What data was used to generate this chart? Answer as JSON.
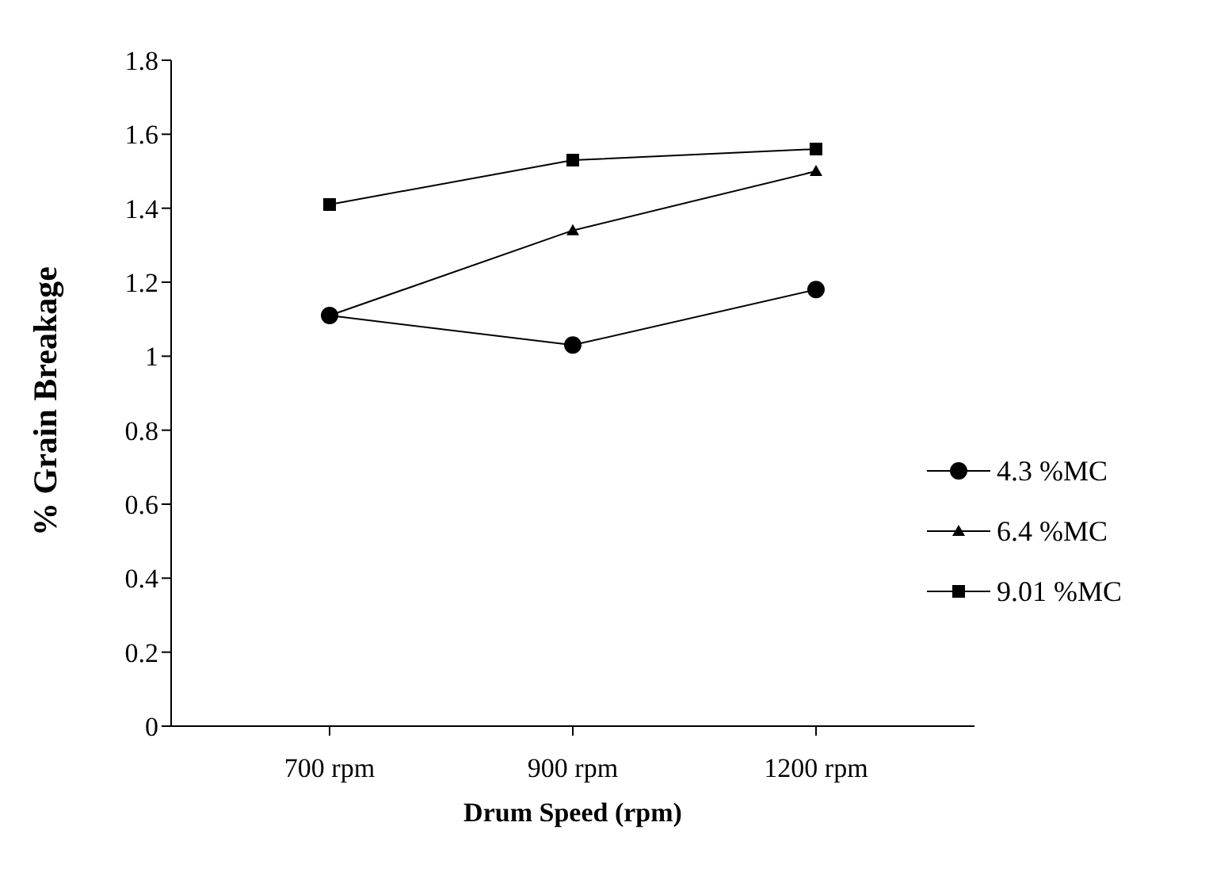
{
  "chart_data": {
    "type": "line",
    "xlabel": "Drum Speed (rpm)",
    "ylabel": "% Grain Breakage",
    "categories": [
      "700 rpm",
      "900 rpm",
      "1200 rpm"
    ],
    "series": [
      {
        "name": "4.3 %MC",
        "color": "#000000",
        "marker": "circle",
        "values": [
          1.11,
          1.03,
          1.18
        ]
      },
      {
        "name": "6.4 %MC",
        "color": "#000000",
        "marker": "triangle",
        "values": [
          1.11,
          1.34,
          1.5
        ]
      },
      {
        "name": "9.01 %MC",
        "color": "#000000",
        "marker": "square",
        "values": [
          1.41,
          1.53,
          1.56
        ]
      }
    ],
    "ylim": [
      0,
      1.8
    ],
    "yticks": [
      0,
      0.2,
      0.4,
      0.6,
      0.8,
      1,
      1.2,
      1.4,
      1.6,
      1.8
    ],
    "grid": false,
    "legend": "right",
    "line_style": "solid"
  }
}
